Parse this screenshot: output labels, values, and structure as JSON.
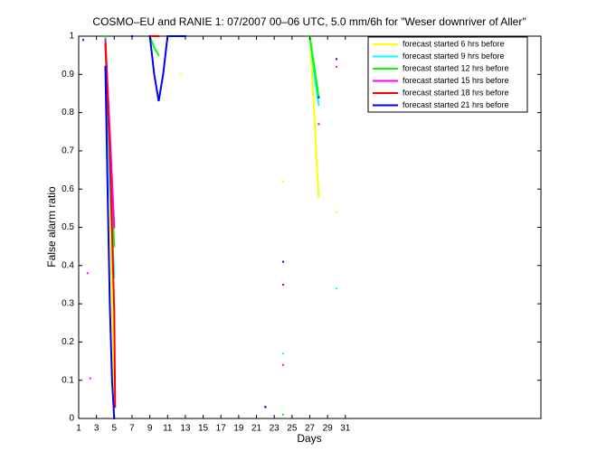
{
  "chart_data": {
    "type": "line",
    "title": "COSMO–EU and RANIE 1: 07/2007 00–06 UTC, 5.0 mm/6h for \"Weser downriver of Aller\"",
    "x_label": "Days",
    "y_label": "False alarm ratio",
    "xlim": [
      1,
      53
    ],
    "xticks": [
      1,
      3,
      5,
      7,
      9,
      11,
      13,
      15,
      17,
      19,
      21,
      23,
      25,
      27,
      29,
      31
    ],
    "ylim": [
      0,
      1
    ],
    "yticks": [
      0,
      0.1,
      0.2,
      0.3,
      0.4,
      0.5,
      0.6,
      0.7,
      0.8,
      0.9,
      1
    ],
    "legend": "upper right",
    "series": [
      {
        "name": "forecast started 6 hrs before",
        "color": "#ffff00",
        "x": [
          4,
          4.25,
          4.5,
          4.75,
          5,
          null,
          12.5,
          null,
          24,
          null,
          27,
          27.25,
          27.5,
          27.75,
          28,
          null,
          30
        ],
        "values": [
          1,
          0.85,
          0.6,
          0.3,
          0.05,
          null,
          0.9,
          null,
          0.62,
          null,
          1,
          0.9,
          0.8,
          0.68,
          0.58,
          null,
          0.54
        ]
      },
      {
        "name": "forecast started 9 hrs before",
        "color": "#00ffff",
        "x": [
          4,
          4.25,
          4.5,
          4.75,
          5,
          null,
          24,
          null,
          27,
          27.5,
          28,
          null,
          30
        ],
        "values": [
          1,
          0.8,
          0.6,
          0.5,
          0.37,
          null,
          0.17,
          null,
          1,
          0.9,
          0.82,
          null,
          0.34
        ]
      },
      {
        "name": "forecast started 12 hrs before",
        "color": "#00ff00",
        "x": [
          4,
          4.5,
          5,
          null,
          9,
          9.5,
          10,
          null,
          24,
          null,
          27,
          27.5,
          28
        ],
        "values": [
          1,
          0.7,
          0.45,
          null,
          1,
          0.97,
          0.95,
          null,
          0.01,
          null,
          1,
          0.92,
          0.84
        ]
      },
      {
        "name": "forecast started 15 hrs before",
        "color": "#ff00ff",
        "x": [
          2,
          null,
          2.3,
          null,
          4,
          4.5,
          5,
          null,
          22,
          null,
          24,
          null,
          30
        ],
        "values": [
          0.38,
          null,
          0.105,
          null,
          0.99,
          0.75,
          0.5,
          null,
          0.03,
          null,
          0.14,
          null,
          0.92
        ]
      },
      {
        "name": "forecast started 18 hrs before",
        "color": "#ff0000",
        "x": [
          4,
          4.5,
          5,
          5.1,
          null,
          9,
          10,
          null,
          22,
          null,
          24,
          null,
          28
        ],
        "values": [
          0.98,
          0.7,
          0.28,
          0.03,
          null,
          1,
          1,
          null,
          0.03,
          null,
          0.35,
          null,
          0.77
        ]
      },
      {
        "name": "forecast started 21 hrs before",
        "color": "#0000ff",
        "x": [
          1.5,
          null,
          4,
          4.25,
          4.5,
          4.75,
          5,
          null,
          7,
          null,
          9,
          9.5,
          10,
          10.5,
          11,
          12,
          13,
          null,
          22,
          null,
          24,
          null,
          28,
          null,
          30
        ],
        "values": [
          0.99,
          null,
          0.92,
          0.6,
          0.3,
          0.1,
          0,
          null,
          1,
          null,
          1,
          0.9,
          0.83,
          0.9,
          1,
          1,
          1,
          null,
          0.03,
          null,
          0.41,
          null,
          0.84,
          null,
          0.94
        ]
      }
    ]
  }
}
